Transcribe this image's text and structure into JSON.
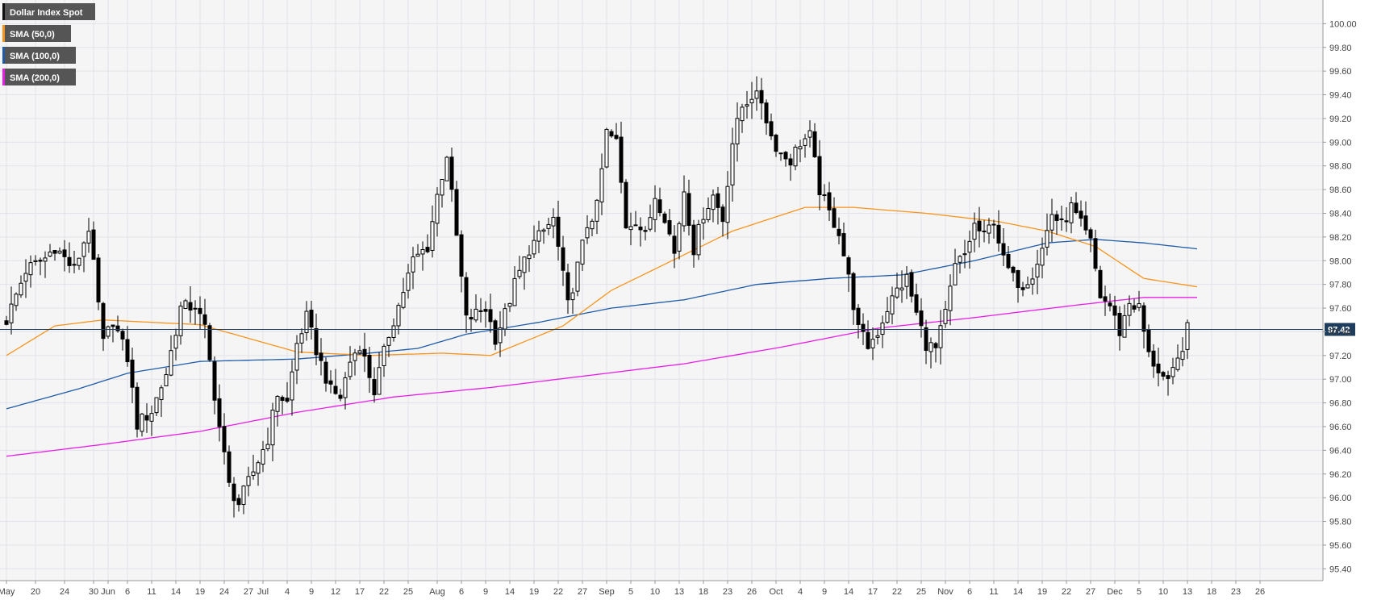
{
  "chart_data": {
    "type": "candlestick",
    "title": "",
    "y_axis": {
      "position": "right",
      "range": [
        95.3,
        100.2
      ],
      "tick_step": 0.2
    },
    "y_ticks": [
      "95.40",
      "95.60",
      "95.80",
      "96.00",
      "96.20",
      "96.40",
      "96.60",
      "96.80",
      "97.00",
      "97.20",
      "97.40",
      "97.60",
      "97.80",
      "98.00",
      "98.20",
      "98.40",
      "98.60",
      "98.80",
      "99.00",
      "99.20",
      "99.40",
      "99.60",
      "99.80",
      "100.00"
    ],
    "x_ticks": [
      "May",
      "20",
      "24",
      "30",
      "Jun",
      "6",
      "11",
      "14",
      "19",
      "24",
      "27",
      "Jul",
      "4",
      "9",
      "12",
      "17",
      "22",
      "25",
      "Aug",
      "6",
      "9",
      "14",
      "19",
      "22",
      "27",
      "Sep",
      "5",
      "10",
      "13",
      "18",
      "23",
      "26",
      "Oct",
      "4",
      "9",
      "14",
      "17",
      "22",
      "25",
      "Nov",
      "6",
      "11",
      "14",
      "19",
      "22",
      "27",
      "Dec",
      "5",
      "10",
      "13",
      "18",
      "23",
      "26"
    ],
    "x_tick_index": [
      0,
      6,
      12,
      18,
      21,
      25,
      30,
      35,
      40,
      45,
      50,
      53,
      58,
      63,
      68,
      73,
      78,
      83,
      89,
      94,
      99,
      104,
      109,
      114,
      119,
      124,
      129,
      134,
      139,
      144,
      149,
      154,
      159,
      164,
      169,
      174,
      179,
      184,
      189,
      194,
      199,
      204,
      209,
      214,
      219,
      224,
      229,
      234,
      239,
      244,
      249,
      254,
      259
    ],
    "grid": true,
    "last_price": {
      "value": 97.42,
      "label": "97.42"
    },
    "legend": [
      {
        "label": "Dollar Index Spot",
        "color": "#000000"
      },
      {
        "label": "SMA (50,0)",
        "color": "#f7941d"
      },
      {
        "label": "SMA (100,0)",
        "color": "#1f5ba8"
      },
      {
        "label": "SMA (200,0)",
        "color": "#e81ee8"
      }
    ],
    "anchors_close": [
      [
        0,
        97.5
      ],
      [
        4,
        97.92
      ],
      [
        8,
        98.02
      ],
      [
        10,
        98.12
      ],
      [
        14,
        97.92
      ],
      [
        17,
        98.28
      ],
      [
        20,
        97.3
      ],
      [
        22,
        97.5
      ],
      [
        25,
        97.18
      ],
      [
        27,
        96.62
      ],
      [
        30,
        96.73
      ],
      [
        33,
        97.05
      ],
      [
        36,
        97.6
      ],
      [
        39,
        97.62
      ],
      [
        41,
        97.42
      ],
      [
        44,
        96.6
      ],
      [
        46,
        96.1
      ],
      [
        48,
        95.95
      ],
      [
        51,
        96.22
      ],
      [
        54,
        96.5
      ],
      [
        56,
        96.88
      ],
      [
        58,
        96.8
      ],
      [
        60,
        97.3
      ],
      [
        62,
        97.52
      ],
      [
        64,
        97.25
      ],
      [
        67,
        96.9
      ],
      [
        69,
        96.85
      ],
      [
        71,
        97.15
      ],
      [
        73,
        97.3
      ],
      [
        76,
        96.9
      ],
      [
        79,
        97.38
      ],
      [
        81,
        97.62
      ],
      [
        84,
        98.0
      ],
      [
        87,
        98.12
      ],
      [
        89,
        98.55
      ],
      [
        91,
        98.9
      ],
      [
        93,
        98.2
      ],
      [
        95,
        97.5
      ],
      [
        97,
        97.55
      ],
      [
        99,
        97.6
      ],
      [
        101,
        97.35
      ],
      [
        103,
        97.55
      ],
      [
        105,
        97.8
      ],
      [
        108,
        98.1
      ],
      [
        110,
        98.2
      ],
      [
        113,
        98.35
      ],
      [
        116,
        97.62
      ],
      [
        118,
        97.95
      ],
      [
        120,
        98.3
      ],
      [
        122,
        98.45
      ],
      [
        124,
        99.08
      ],
      [
        126,
        99.0
      ],
      [
        128,
        98.3
      ],
      [
        130,
        98.35
      ],
      [
        132,
        98.2
      ],
      [
        134,
        98.55
      ],
      [
        136,
        98.38
      ],
      [
        138,
        98.06
      ],
      [
        140,
        98.6
      ],
      [
        142,
        98.1
      ],
      [
        144,
        98.4
      ],
      [
        146,
        98.55
      ],
      [
        148,
        98.35
      ],
      [
        150,
        99.0
      ],
      [
        152,
        99.3
      ],
      [
        154,
        99.4
      ],
      [
        156,
        99.35
      ],
      [
        158,
        99.05
      ],
      [
        160,
        98.9
      ],
      [
        162,
        98.85
      ],
      [
        164,
        99.0
      ],
      [
        166,
        99.05
      ],
      [
        168,
        98.6
      ],
      [
        170,
        98.4
      ],
      [
        172,
        98.25
      ],
      [
        174,
        97.85
      ],
      [
        176,
        97.42
      ],
      [
        178,
        97.28
      ],
      [
        180,
        97.4
      ],
      [
        182,
        97.6
      ],
      [
        184,
        97.75
      ],
      [
        186,
        97.85
      ],
      [
        188,
        97.55
      ],
      [
        190,
        97.3
      ],
      [
        192,
        97.25
      ],
      [
        194,
        97.55
      ],
      [
        196,
        97.95
      ],
      [
        198,
        98.05
      ],
      [
        200,
        98.3
      ],
      [
        202,
        98.2
      ],
      [
        204,
        98.35
      ],
      [
        206,
        98.0
      ],
      [
        208,
        97.85
      ],
      [
        210,
        97.8
      ],
      [
        212,
        97.9
      ],
      [
        214,
        98.1
      ],
      [
        216,
        98.4
      ],
      [
        218,
        98.3
      ],
      [
        220,
        98.45
      ],
      [
        222,
        98.3
      ],
      [
        224,
        98.15
      ],
      [
        226,
        97.7
      ],
      [
        228,
        97.62
      ],
      [
        230,
        97.4
      ],
      [
        232,
        97.65
      ],
      [
        234,
        97.6
      ],
      [
        236,
        97.2
      ],
      [
        238,
        97.08
      ],
      [
        240,
        96.95
      ],
      [
        242,
        97.15
      ],
      [
        244,
        97.42
      ]
    ],
    "sma_50": [
      [
        0,
        97.2
      ],
      [
        10,
        97.45
      ],
      [
        20,
        97.5
      ],
      [
        40,
        97.46
      ],
      [
        60,
        97.23
      ],
      [
        75,
        97.2
      ],
      [
        90,
        97.22
      ],
      [
        100,
        97.2
      ],
      [
        115,
        97.45
      ],
      [
        125,
        97.75
      ],
      [
        140,
        98.05
      ],
      [
        150,
        98.25
      ],
      [
        165,
        98.45
      ],
      [
        175,
        98.45
      ],
      [
        190,
        98.4
      ],
      [
        205,
        98.33
      ],
      [
        215,
        98.25
      ],
      [
        225,
        98.12
      ],
      [
        235,
        97.85
      ],
      [
        246,
        97.78
      ]
    ],
    "sma_100": [
      [
        0,
        96.75
      ],
      [
        15,
        96.92
      ],
      [
        25,
        97.05
      ],
      [
        40,
        97.15
      ],
      [
        60,
        97.17
      ],
      [
        75,
        97.22
      ],
      [
        85,
        97.26
      ],
      [
        95,
        97.38
      ],
      [
        110,
        97.48
      ],
      [
        125,
        97.6
      ],
      [
        140,
        97.67
      ],
      [
        155,
        97.8
      ],
      [
        170,
        97.85
      ],
      [
        185,
        97.88
      ],
      [
        200,
        98.0
      ],
      [
        215,
        98.15
      ],
      [
        225,
        98.18
      ],
      [
        235,
        98.15
      ],
      [
        246,
        98.1
      ]
    ],
    "sma_200": [
      [
        0,
        96.35
      ],
      [
        20,
        96.45
      ],
      [
        40,
        96.56
      ],
      [
        60,
        96.72
      ],
      [
        80,
        96.85
      ],
      [
        100,
        96.93
      ],
      [
        120,
        97.03
      ],
      [
        140,
        97.13
      ],
      [
        160,
        97.27
      ],
      [
        180,
        97.43
      ],
      [
        200,
        97.52
      ],
      [
        220,
        97.62
      ],
      [
        235,
        97.69
      ],
      [
        246,
        97.69
      ]
    ]
  }
}
